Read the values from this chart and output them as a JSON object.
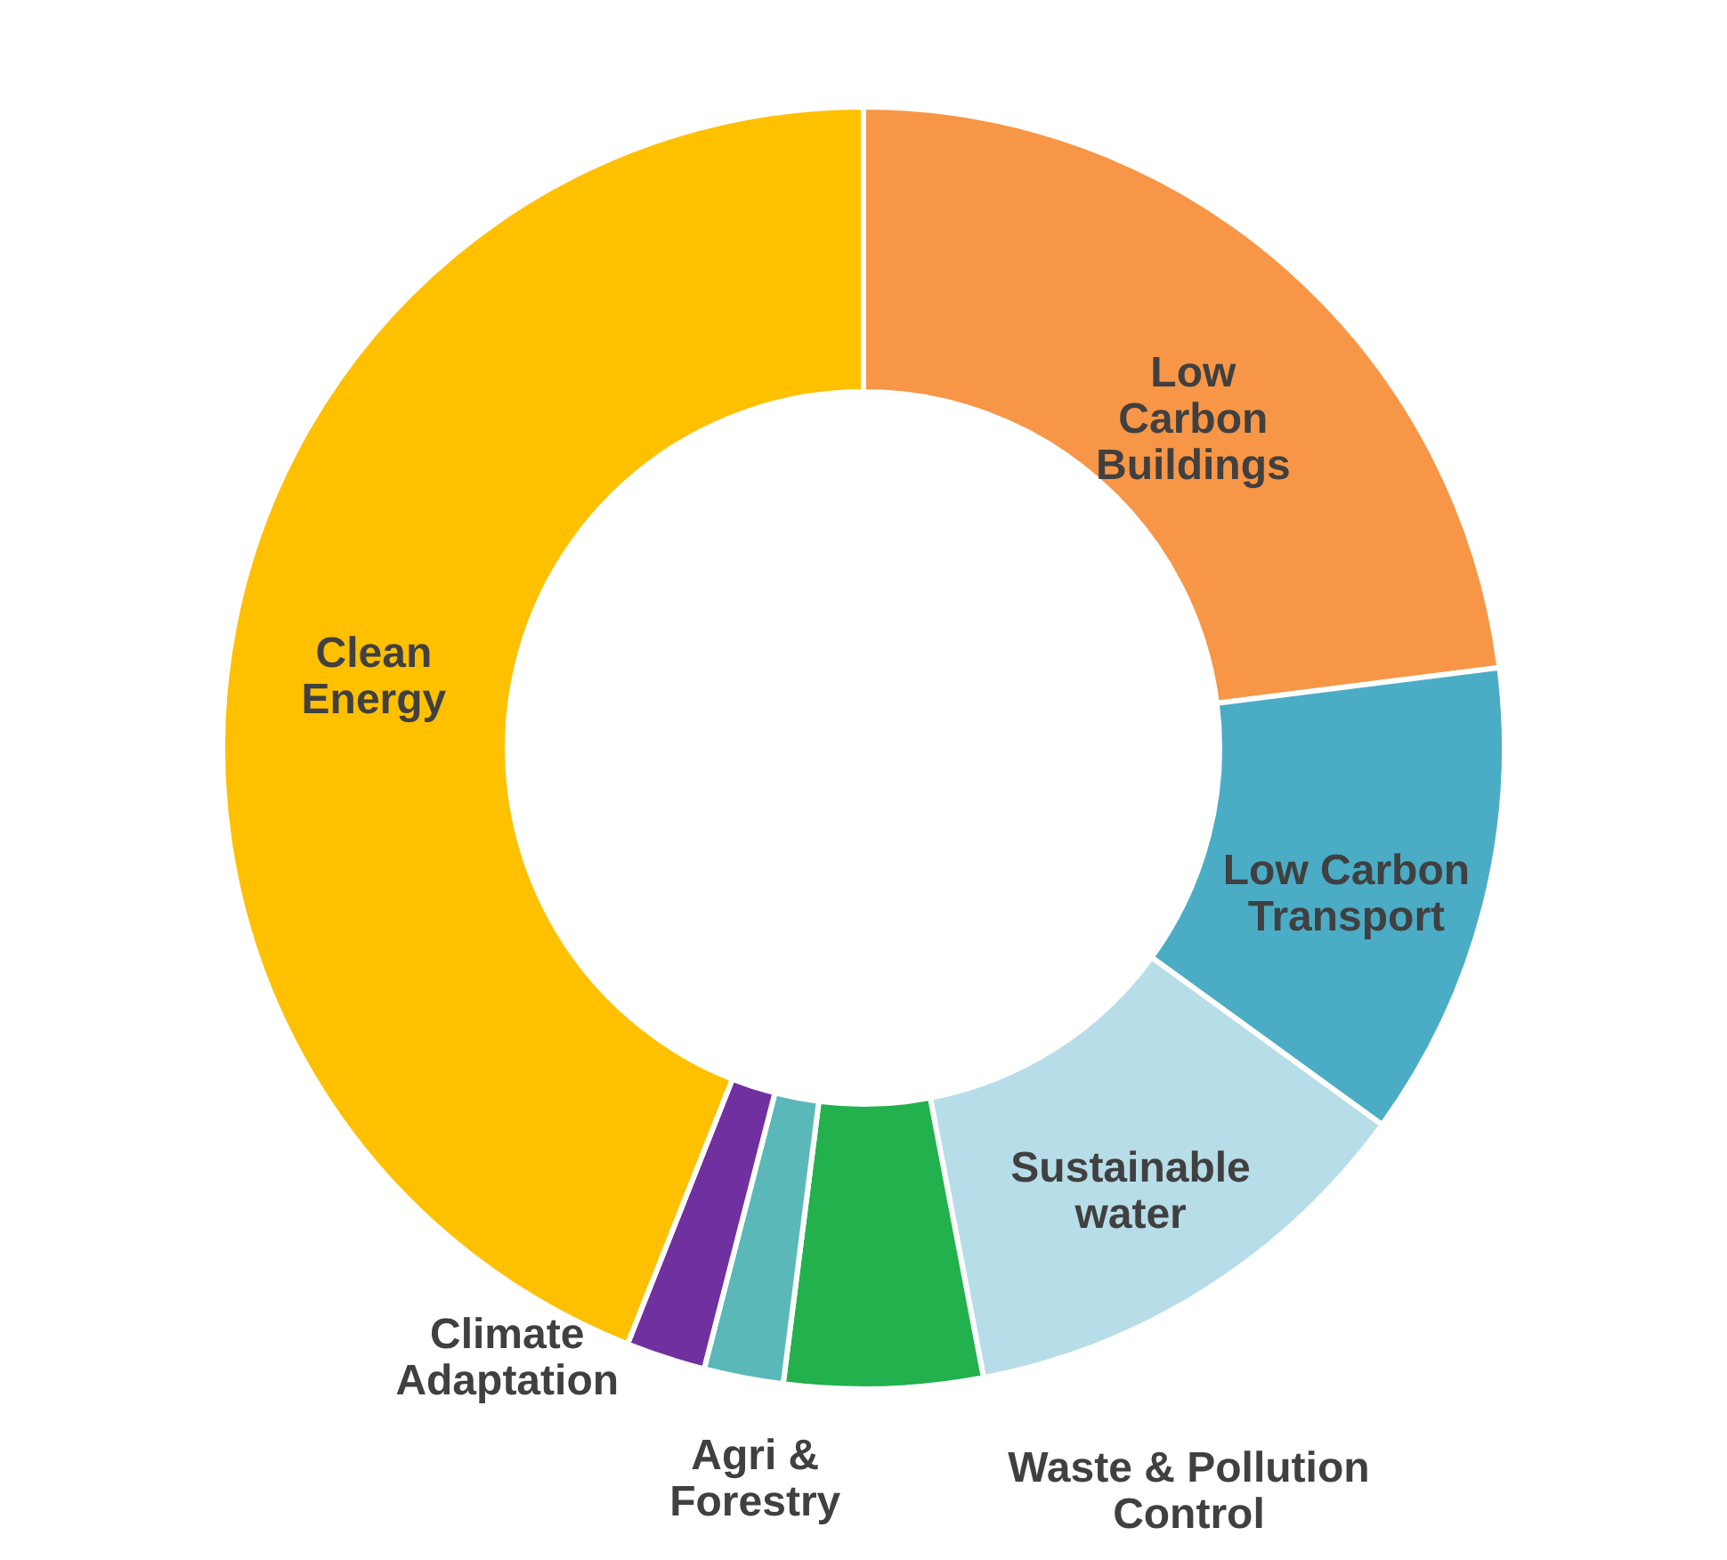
{
  "chart_data": {
    "type": "donut",
    "categories": [
      "Low\nCarbon\nBuildings",
      "Low Carbon\nTransport",
      "Sustainable\nwater",
      "Waste & Pollution\nControl",
      "Agri &\nForestry",
      "Climate\nAdaptation",
      "Clean\nEnergy"
    ],
    "values": [
      23,
      12,
      12,
      5,
      2,
      2,
      44
    ],
    "colors": [
      "#f79646",
      "#4bacc6",
      "#b7dde8",
      "#22b14c",
      "#5bb8b8",
      "#7030a0",
      "#ffc000"
    ]
  }
}
